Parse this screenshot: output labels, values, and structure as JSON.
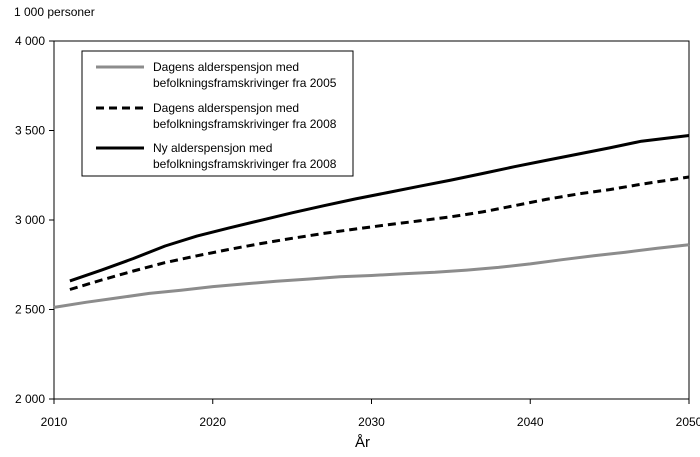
{
  "chart_data": {
    "type": "line",
    "ylabel": "1 000 personer",
    "xlabel": "År",
    "xlim": [
      2010,
      2050
    ],
    "ylim": [
      2000,
      4000
    ],
    "xticks": [
      2010,
      2020,
      2030,
      2040,
      2050
    ],
    "xtick_labels": [
      "2010",
      "2020",
      "2030",
      "2040",
      "2050"
    ],
    "yticks": [
      2000,
      2500,
      3000,
      3500,
      4000
    ],
    "ytick_labels": [
      "2 000",
      "2 500",
      "3 000",
      "3 500",
      "4 000"
    ],
    "grid": false,
    "legend_position": "top-left",
    "series": [
      {
        "name": "Dagens alderspensjon med befolkningsframskrivinger fra 2005",
        "legend_lines": [
          "Dagens alderspensjon med",
          "befolkningsframskrivinger fra 2005"
        ],
        "style": "solid",
        "color": "#8c8c8c",
        "x": [
          2010,
          2012,
          2014,
          2016,
          2018,
          2020,
          2022,
          2024,
          2026,
          2028,
          2030,
          2032,
          2034,
          2036,
          2038,
          2040,
          2042,
          2044,
          2046,
          2048,
          2050
        ],
        "y": [
          2512,
          2540,
          2565,
          2590,
          2607,
          2628,
          2643,
          2658,
          2670,
          2683,
          2690,
          2700,
          2708,
          2720,
          2735,
          2755,
          2778,
          2800,
          2820,
          2842,
          2862
        ]
      },
      {
        "name": "Dagens alderspensjon med befolkningsframskrivinger fra 2008",
        "legend_lines": [
          "Dagens alderspensjon med",
          "befolkningsframskrivinger fra 2008"
        ],
        "style": "dashed",
        "color": "#000000",
        "x": [
          2011,
          2013,
          2015,
          2017,
          2019,
          2021,
          2023,
          2025,
          2027,
          2029,
          2031,
          2033,
          2035,
          2037,
          2039,
          2041,
          2043,
          2045,
          2047,
          2050
        ],
        "y": [
          2612,
          2665,
          2715,
          2762,
          2800,
          2835,
          2868,
          2898,
          2925,
          2950,
          2973,
          2995,
          3018,
          3045,
          3080,
          3115,
          3145,
          3170,
          3200,
          3240
        ]
      },
      {
        "name": "Ny alderspensjon med befolkningsframskrivinger fra 2008",
        "legend_lines": [
          "Ny alderspensjon med",
          "befolkningsframskrivinger fra 2008"
        ],
        "style": "solid",
        "color": "#000000",
        "x": [
          2011,
          2013,
          2015,
          2017,
          2019,
          2021,
          2023,
          2025,
          2027,
          2029,
          2031,
          2033,
          2035,
          2037,
          2039,
          2041,
          2043,
          2045,
          2047,
          2050
        ],
        "y": [
          2660,
          2720,
          2785,
          2855,
          2910,
          2955,
          2998,
          3040,
          3080,
          3118,
          3153,
          3188,
          3223,
          3260,
          3298,
          3333,
          3368,
          3403,
          3440,
          3472
        ]
      }
    ]
  }
}
